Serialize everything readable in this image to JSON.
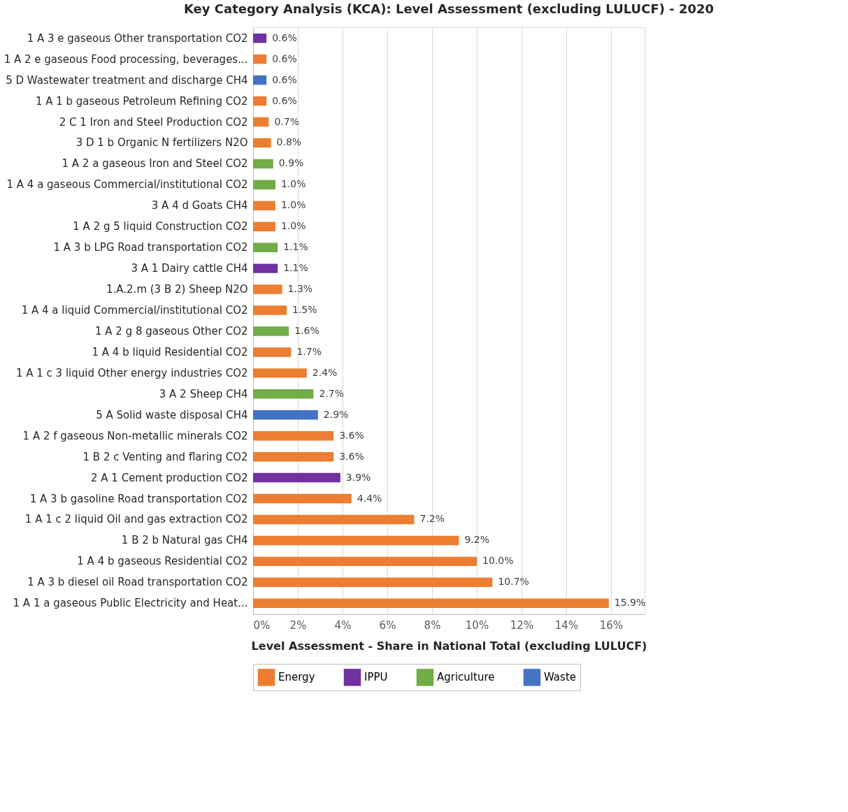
{
  "chart_data": {
    "type": "bar",
    "orientation": "horizontal",
    "title": "Key Category Analysis (KCA): Level Assessment (excluding LULUCF) - 2020",
    "xlabel": "Level Assessment - Share in National Total (excluding LULUCF)",
    "categories": [
      "1 A 3 e gaseous Other transportation CO2",
      "1 A 2 e gaseous Food processing, beverages...",
      "5 D Wastewater treatment and discharge CH4",
      "1 A 1 b gaseous Petroleum Refining CO2",
      "2 C 1 Iron and Steel Production  CO2",
      "3 D 1 b Organic N fertilizers N2O",
      "1 A 2 a gaseous Iron and Steel  CO2",
      "1 A 4 a gaseous Commercial/institutional CO2",
      "3 A 4 d Goats CH4",
      "1 A 2 g 5 liquid Construction CO2",
      "1 A 3 b LPG Road transportation CO2",
      "3 A 1 Dairy cattle CH4",
      "1.A.2.m (3 B 2) Sheep N2O",
      "1 A 4 a liquid Commercial/institutional CO2",
      "1 A 2 g 8 gaseous Other CO2",
      "1 A 4 b liquid Residential CO2",
      "1 A 1 c 3 liquid Other energy industries CO2",
      "3 A 2 Sheep CH4",
      "5 A   Solid waste disposal CH4",
      "1 A 2 f gaseous Non-metallic minerals CO2",
      "1 B 2 c Venting and flaring CO2",
      "2 A 1 Cement production  CO2",
      "1 A 3 b gasoline Road transportation CO2",
      "1 A 1 c 2 liquid Oil and gas extraction CO2",
      "1 B 2 b Natural gas CH4",
      "1 A 4 b gaseous Residential CO2",
      "1 A 3 b diesel oil Road transportation CO2",
      "1 A 1 a gaseous Public Electricity and Heat..."
    ],
    "series": [
      {
        "name": "Energy",
        "color": "#ed7d31",
        "values": [
          null,
          0.6,
          null,
          0.6,
          0.7,
          0.8,
          null,
          null,
          1.0,
          1.0,
          null,
          null,
          1.3,
          1.5,
          null,
          1.7,
          2.4,
          null,
          null,
          3.6,
          3.6,
          null,
          4.4,
          7.2,
          9.2,
          10.0,
          10.7,
          15.9
        ]
      },
      {
        "name": "IPPU",
        "color": "#7030a0",
        "values": [
          0.6,
          null,
          null,
          null,
          null,
          null,
          null,
          null,
          null,
          null,
          null,
          1.1,
          null,
          null,
          null,
          null,
          null,
          null,
          null,
          null,
          null,
          3.9,
          null,
          null,
          null,
          null,
          null,
          null
        ]
      },
      {
        "name": "Agriculture",
        "color": "#70ad47",
        "values": [
          null,
          null,
          null,
          null,
          null,
          null,
          0.9,
          1.0,
          null,
          null,
          1.1,
          null,
          null,
          null,
          1.6,
          null,
          null,
          2.7,
          null,
          null,
          null,
          null,
          null,
          null,
          null,
          null,
          null,
          null
        ]
      },
      {
        "name": "Waste",
        "color": "#4472c4",
        "values": [
          null,
          null,
          0.6,
          null,
          null,
          null,
          null,
          null,
          null,
          null,
          null,
          null,
          null,
          null,
          null,
          null,
          null,
          null,
          2.9,
          null,
          null,
          null,
          null,
          null,
          null,
          null,
          null,
          null
        ]
      }
    ],
    "value_labels": [
      "0.6%",
      "0.6%",
      "0.6%",
      "0.6%",
      "0.7%",
      "0.8%",
      "0.9%",
      "1.0%",
      "1.0%",
      "1.0%",
      "1.1%",
      "1.1%",
      "1.3%",
      "1.5%",
      "1.6%",
      "1.7%",
      "2.4%",
      "2.7%",
      "2.9%",
      "3.6%",
      "3.6%",
      "3.9%",
      "4.4%",
      "7.2%",
      "9.2%",
      "10.0%",
      "10.7%",
      "15.9%"
    ],
    "xlim": [
      0,
      17.5
    ],
    "xticks": [
      {
        "value": 0,
        "label": "0%"
      },
      {
        "value": 2,
        "label": "2%"
      },
      {
        "value": 4,
        "label": "4%"
      },
      {
        "value": 6,
        "label": "6%"
      },
      {
        "value": 8,
        "label": "8%"
      },
      {
        "value": 10,
        "label": "10%"
      },
      {
        "value": 12,
        "label": "12%"
      },
      {
        "value": 14,
        "label": "14%"
      },
      {
        "value": 16,
        "label": "16%"
      }
    ],
    "grid": "x",
    "legend": "bottom"
  }
}
